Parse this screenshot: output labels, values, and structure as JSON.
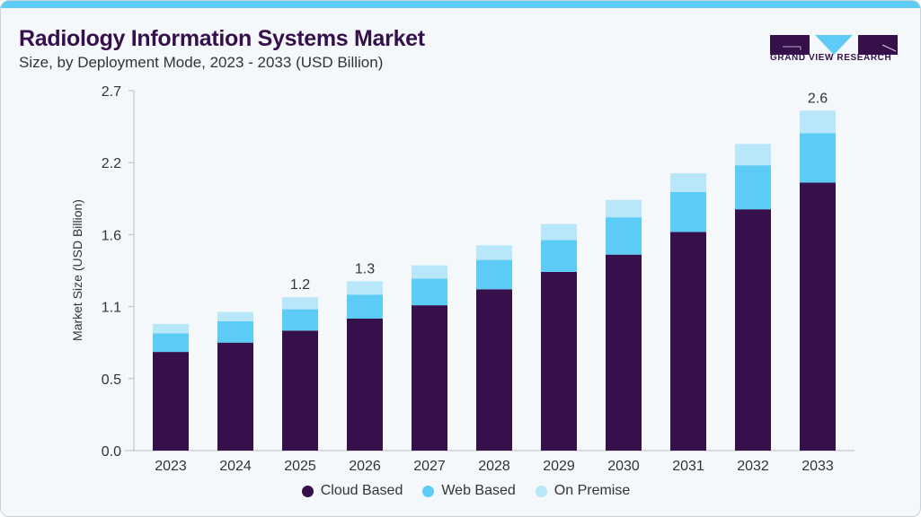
{
  "header": {
    "title": "Radiology Information Systems Market",
    "subtitle": "Size, by Deployment Mode, 2023 - 2033 (USD Billion)"
  },
  "logo": {
    "text": "GRAND VIEW RESEARCH"
  },
  "chart_data": {
    "type": "bar",
    "stacked": true,
    "title": "Radiology Information Systems Market",
    "ylabel": "Market Size (USD Billion)",
    "xlabel": "",
    "ylim": [
      0,
      2.7
    ],
    "yticks": [
      0,
      0.54,
      1.08,
      1.62,
      2.16,
      2.7
    ],
    "ytick_labels": [
      "0.0",
      "0.5",
      "1.1",
      "1.6",
      "2.2",
      "2.7"
    ],
    "grid": false,
    "legend": "bottom",
    "categories": [
      "2023",
      "2024",
      "2025",
      "2026",
      "2027",
      "2028",
      "2029",
      "2030",
      "2031",
      "2032",
      "2033"
    ],
    "series": [
      {
        "name": "Cloud Based",
        "color": "#35104a",
        "values": [
          0.74,
          0.81,
          0.9,
          0.99,
          1.09,
          1.21,
          1.34,
          1.47,
          1.64,
          1.81,
          2.01
        ]
      },
      {
        "name": "Web Based",
        "color": "#5ccbf6",
        "values": [
          0.14,
          0.16,
          0.16,
          0.18,
          0.2,
          0.22,
          0.24,
          0.28,
          0.3,
          0.33,
          0.37
        ]
      },
      {
        "name": "On Premise",
        "color": "#b8e7fa",
        "values": [
          0.07,
          0.07,
          0.09,
          0.1,
          0.1,
          0.11,
          0.12,
          0.13,
          0.14,
          0.16,
          0.17
        ]
      }
    ],
    "annotations": [
      {
        "category": "2025",
        "text": "1.2"
      },
      {
        "category": "2026",
        "text": "1.3"
      },
      {
        "category": "2033",
        "text": "2.6"
      }
    ]
  }
}
